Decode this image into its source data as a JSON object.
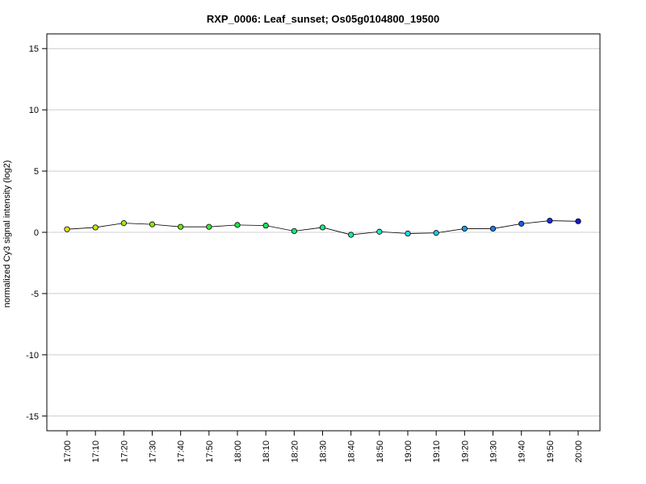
{
  "chart_data": {
    "type": "line",
    "title": "RXP_0006: Leaf_sunset; Os05g0104800_19500",
    "xlabel": "",
    "ylabel": "normalized Cy3 signal intensity (log2)",
    "ylim": [
      -16.2,
      16.2
    ],
    "yticks": [
      -15,
      -10,
      -5,
      0,
      5,
      10,
      15
    ],
    "ytick_labels": [
      "-15",
      "-10",
      "-5",
      "0",
      "5",
      "10",
      "15"
    ],
    "grid": "horizontal",
    "categories": [
      "17:00",
      "17:10",
      "17:20",
      "17:30",
      "17:40",
      "17:50",
      "18:00",
      "18:10",
      "18:20",
      "18:30",
      "18:40",
      "18:50",
      "19:00",
      "19:10",
      "19:20",
      "19:30",
      "19:40",
      "19:50",
      "20:00"
    ],
    "values": [
      0.25,
      0.4,
      0.75,
      0.65,
      0.45,
      0.45,
      0.6,
      0.55,
      0.1,
      0.4,
      -0.2,
      0.05,
      -0.1,
      -0.05,
      0.3,
      0.3,
      0.7,
      0.95,
      0.9
    ],
    "point_colors": [
      "#e3e01a",
      "#c8e61a",
      "#a6e61a",
      "#8ee61a",
      "#6be61a",
      "#3de63b",
      "#1de64a",
      "#1de660",
      "#1de67c",
      "#1de690",
      "#1de6a8",
      "#1de6c4",
      "#1ddce6",
      "#1dc4e6",
      "#1d9ae6",
      "#1d7ce6",
      "#1d5ae6",
      "#1d2ee6",
      "#1a1acc"
    ],
    "line_color": "#000000"
  }
}
